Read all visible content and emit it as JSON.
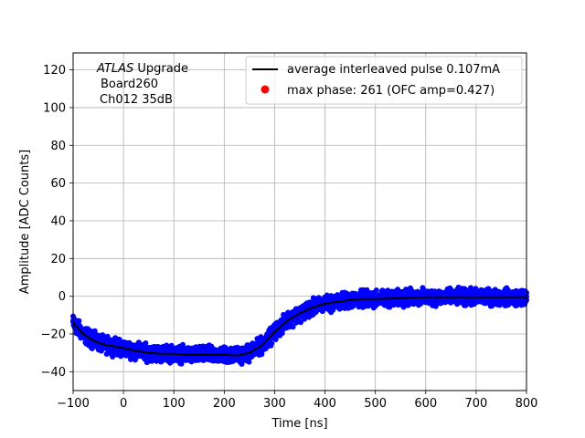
{
  "chart_data": {
    "type": "scatter",
    "xlabel": "Time [ns]",
    "ylabel": "Amplitude [ADC Counts]",
    "xlim": [
      -100,
      800
    ],
    "ylim": [
      -50,
      129
    ],
    "x_ticks": [
      -100,
      0,
      100,
      200,
      300,
      400,
      500,
      600,
      700,
      800
    ],
    "y_ticks": [
      -40,
      -20,
      0,
      20,
      40,
      60,
      80,
      100,
      120
    ],
    "grid": true,
    "legend_position": "top-right",
    "annotation": {
      "line1_italic": "ATLAS",
      "line1_rest": " Upgrade",
      "line2": "Board260",
      "line3": "Ch012 35dB"
    },
    "series": [
      {
        "name": "average interleaved pulse 0.107mA",
        "kind": "line",
        "color": "#000000",
        "x": [
          -100,
          -80,
          -60,
          -40,
          -20,
          0,
          25,
          50,
          75,
          100,
          125,
          150,
          175,
          200,
          225,
          250,
          275,
          300,
          325,
          350,
          375,
          400,
          425,
          450,
          475,
          500,
          550,
          600,
          650,
          700,
          750,
          800
        ],
        "y": [
          -14,
          -20,
          -23.5,
          -25.5,
          -26.5,
          -27.5,
          -29,
          -30,
          -30.5,
          -30.5,
          -31,
          -31,
          -31,
          -31,
          -31.5,
          -30,
          -26,
          -19,
          -13,
          -9,
          -6,
          -4,
          -3,
          -2,
          -1.5,
          -1.5,
          -1,
          -0.5,
          -0.5,
          -0.5,
          -0.5,
          -0.5
        ],
        "noise_halfwidth_adc": 6
      },
      {
        "name": "max phase: 261 (OFC amp=0.427)",
        "kind": "marker",
        "color": "#ff0000"
      }
    ],
    "scatter_color": "#0000ff"
  }
}
